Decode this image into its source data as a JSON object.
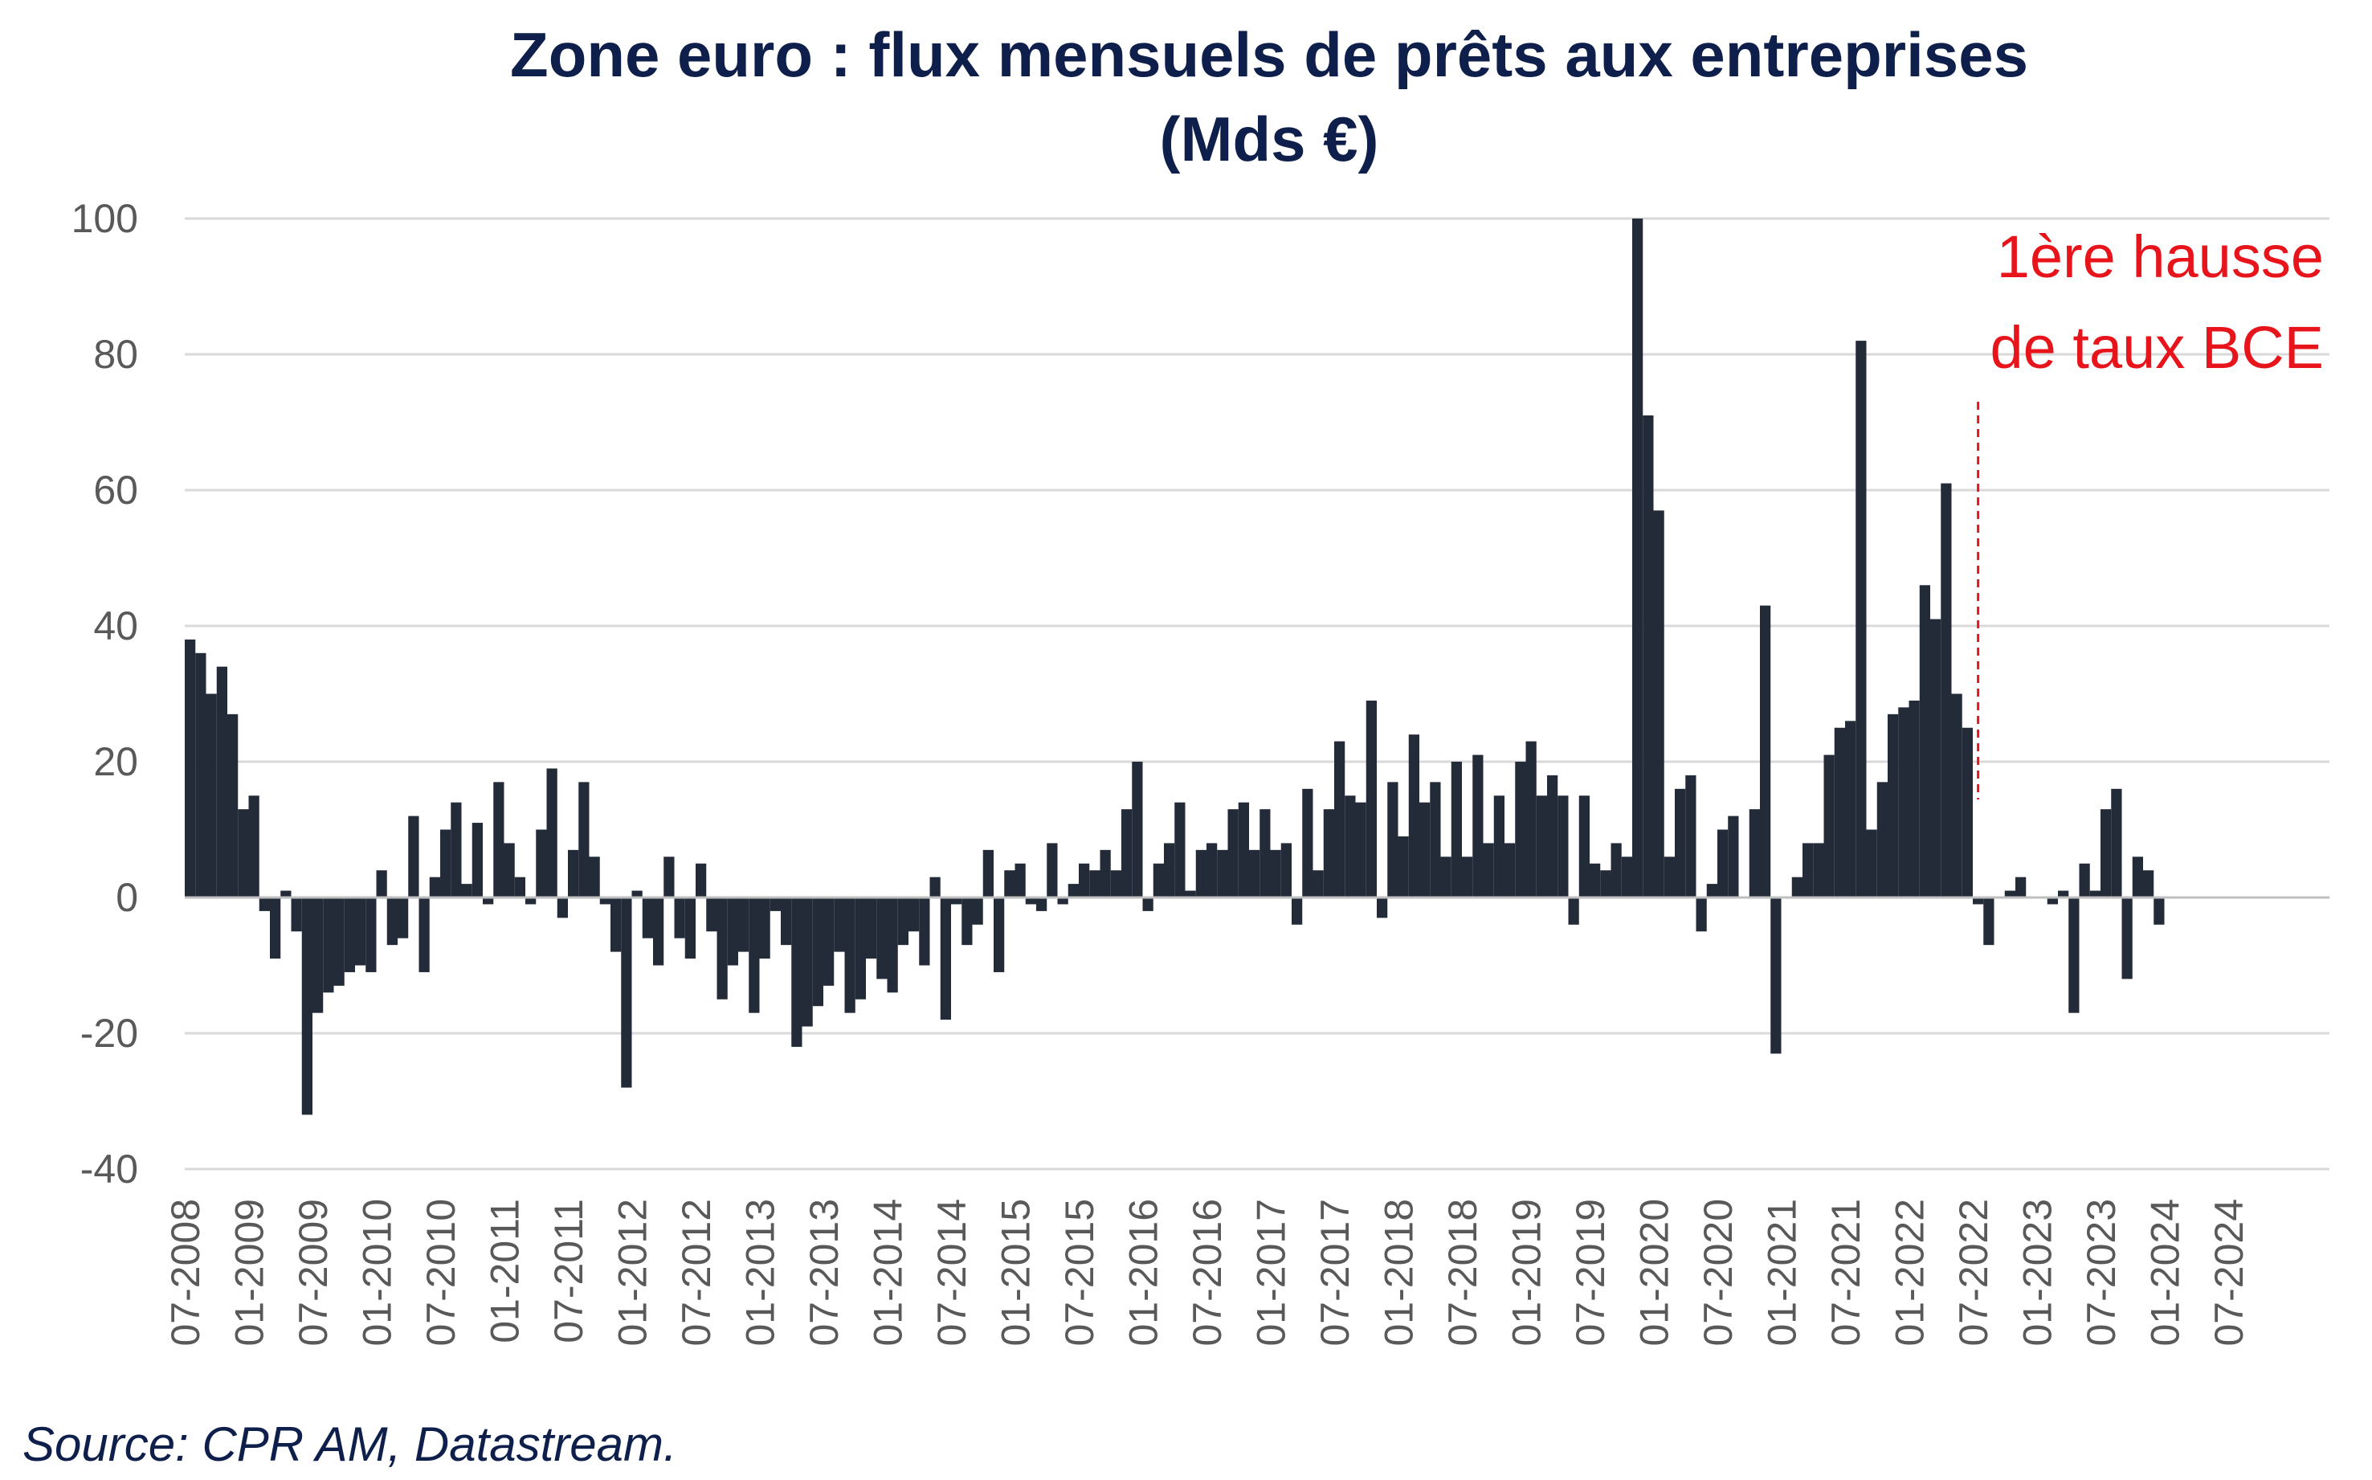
{
  "chart_data": {
    "type": "bar",
    "title": "Zone euro : flux mensuels de prêts aux entreprises",
    "subtitle": "(Mds €)",
    "xlabel": "",
    "ylabel": "",
    "ylim": [
      -40,
      100
    ],
    "yticks": [
      "100",
      "80",
      "60",
      "40",
      "20",
      "0",
      "-20",
      "-40"
    ],
    "grid": true,
    "legend": "none",
    "start_month": "2008-07",
    "xtick_labels": [
      "07-2008",
      "01-2009",
      "07-2009",
      "01-2010",
      "07-2010",
      "01-2011",
      "07-2011",
      "01-2012",
      "07-2012",
      "01-2013",
      "07-2013",
      "01-2014",
      "07-2014",
      "01-2015",
      "07-2015",
      "01-2016",
      "07-2016",
      "01-2017",
      "07-2017",
      "01-2018",
      "07-2018",
      "01-2019",
      "07-2019",
      "01-2020",
      "07-2020",
      "01-2021",
      "07-2021",
      "01-2022",
      "07-2022",
      "01-2023",
      "07-2023",
      "01-2024",
      "07-2024"
    ],
    "bar_color": "#232b38",
    "values": [
      38,
      36,
      30,
      34,
      27,
      13,
      15,
      -2,
      -9,
      1,
      -5,
      -32,
      -17,
      -14,
      -13,
      -11,
      -10,
      -11,
      4,
      -7,
      -6,
      12,
      -11,
      3,
      10,
      14,
      2,
      11,
      -1,
      17,
      8,
      3,
      -1,
      10,
      19,
      -3,
      7,
      17,
      6,
      -1,
      -8,
      -28,
      1,
      -6,
      -10,
      6,
      -6,
      -9,
      5,
      -5,
      -15,
      -10,
      -8,
      -17,
      -9,
      -2,
      -7,
      -22,
      -19,
      -16,
      -13,
      -8,
      -17,
      -15,
      -9,
      -12,
      -14,
      -7,
      -5,
      -10,
      3,
      -18,
      -1,
      -7,
      -4,
      7,
      -11,
      4,
      5,
      -1,
      -2,
      8,
      -1,
      2,
      5,
      4,
      7,
      4,
      13,
      20,
      -2,
      5,
      8,
      14,
      1,
      7,
      8,
      7,
      13,
      14,
      7,
      13,
      7,
      8,
      -4,
      16,
      4,
      13,
      23,
      15,
      14,
      29,
      -3,
      17,
      9,
      24,
      14,
      17,
      6,
      20,
      6,
      21,
      8,
      15,
      8,
      20,
      23,
      15,
      18,
      15,
      -4,
      15,
      5,
      4,
      8,
      6,
      100,
      71,
      57,
      6,
      16,
      18,
      -5,
      2,
      10,
      12,
      0,
      13,
      43,
      -23,
      0,
      3,
      8,
      8,
      21,
      25,
      26,
      82,
      10,
      17,
      27,
      28,
      29,
      46,
      41,
      61,
      30,
      25,
      -1,
      -7,
      0,
      1,
      3,
      0,
      0,
      -1,
      1,
      -17,
      5,
      1,
      13,
      16,
      -12,
      6,
      4,
      -4
    ]
  },
  "annotation": {
    "line1": "1ère hausse",
    "line2": "de taux BCE",
    "month": "2022-07",
    "color": "#e8141b"
  },
  "source": "Source: CPR AM, Datastream."
}
